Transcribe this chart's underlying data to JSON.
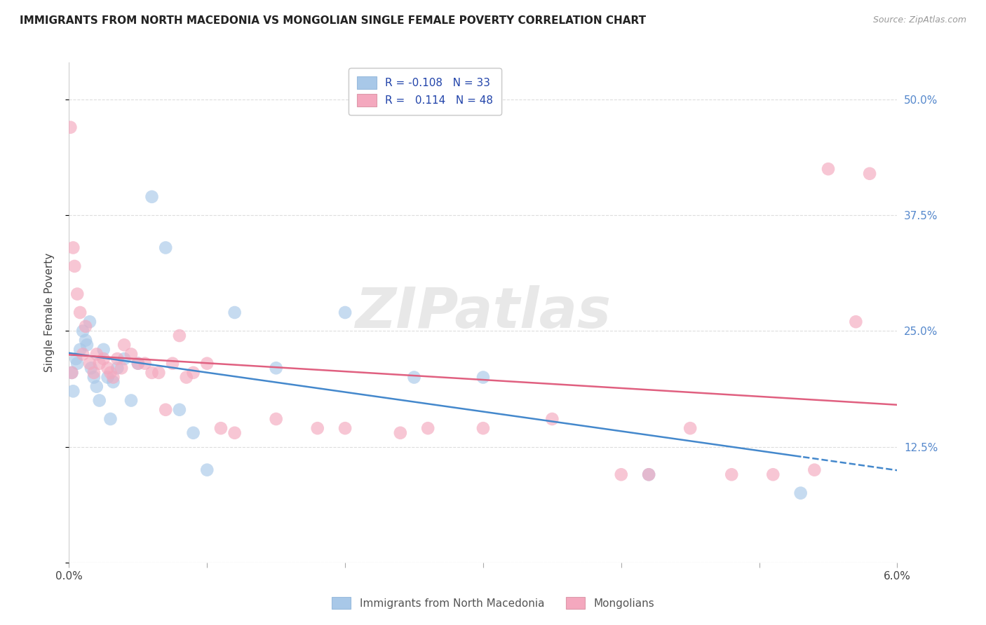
{
  "title": "IMMIGRANTS FROM NORTH MACEDONIA VS MONGOLIAN SINGLE FEMALE POVERTY CORRELATION CHART",
  "source": "Source: ZipAtlas.com",
  "ylabel": "Single Female Poverty",
  "series1_label": "Immigrants from North Macedonia",
  "series2_label": "Mongolians",
  "series1_R": "-0.108",
  "series1_N": "33",
  "series2_R": "0.114",
  "series2_N": "48",
  "xlim": [
    0.0,
    0.06
  ],
  "ylim": [
    0.0,
    0.54
  ],
  "yticks": [
    0.0,
    0.125,
    0.25,
    0.375,
    0.5
  ],
  "ytick_labels": [
    "",
    "12.5%",
    "25.0%",
    "37.5%",
    "50.0%"
  ],
  "xticks": [
    0.0,
    0.01,
    0.02,
    0.03,
    0.04,
    0.05,
    0.06
  ],
  "xtick_labels": [
    "0.0%",
    "",
    "",
    "",
    "",
    "",
    "6.0%"
  ],
  "color_blue": "#a8c8e8",
  "color_pink": "#f4a8be",
  "color_blue_line": "#4488cc",
  "color_pink_line": "#e06080",
  "watermark": "ZIPatlas",
  "series1_x": [
    0.0002,
    0.0003,
    0.0005,
    0.0006,
    0.0008,
    0.001,
    0.0012,
    0.0013,
    0.0015,
    0.0016,
    0.0018,
    0.002,
    0.0022,
    0.0025,
    0.0028,
    0.003,
    0.0032,
    0.0035,
    0.004,
    0.0045,
    0.005,
    0.006,
    0.007,
    0.008,
    0.009,
    0.01,
    0.012,
    0.015,
    0.02,
    0.025,
    0.03,
    0.042,
    0.053
  ],
  "series1_y": [
    0.205,
    0.185,
    0.22,
    0.215,
    0.23,
    0.25,
    0.24,
    0.235,
    0.26,
    0.21,
    0.2,
    0.19,
    0.175,
    0.23,
    0.2,
    0.155,
    0.195,
    0.21,
    0.22,
    0.175,
    0.215,
    0.395,
    0.34,
    0.165,
    0.14,
    0.1,
    0.27,
    0.21,
    0.27,
    0.2,
    0.2,
    0.095,
    0.075
  ],
  "series2_x": [
    0.0001,
    0.0002,
    0.0003,
    0.0004,
    0.0006,
    0.0008,
    0.001,
    0.0012,
    0.0015,
    0.0018,
    0.002,
    0.0022,
    0.0025,
    0.0028,
    0.003,
    0.0032,
    0.0035,
    0.0038,
    0.004,
    0.0045,
    0.005,
    0.0055,
    0.006,
    0.0065,
    0.007,
    0.0075,
    0.008,
    0.0085,
    0.009,
    0.01,
    0.011,
    0.012,
    0.015,
    0.018,
    0.02,
    0.024,
    0.026,
    0.03,
    0.035,
    0.04,
    0.042,
    0.045,
    0.048,
    0.051,
    0.054,
    0.055,
    0.057,
    0.058
  ],
  "series2_y": [
    0.47,
    0.205,
    0.34,
    0.32,
    0.29,
    0.27,
    0.225,
    0.255,
    0.215,
    0.205,
    0.225,
    0.215,
    0.22,
    0.21,
    0.205,
    0.2,
    0.22,
    0.21,
    0.235,
    0.225,
    0.215,
    0.215,
    0.205,
    0.205,
    0.165,
    0.215,
    0.245,
    0.2,
    0.205,
    0.215,
    0.145,
    0.14,
    0.155,
    0.145,
    0.145,
    0.14,
    0.145,
    0.145,
    0.155,
    0.095,
    0.095,
    0.145,
    0.095,
    0.095,
    0.1,
    0.425,
    0.26,
    0.42
  ],
  "background_color": "#ffffff",
  "grid_color": "#dddddd"
}
